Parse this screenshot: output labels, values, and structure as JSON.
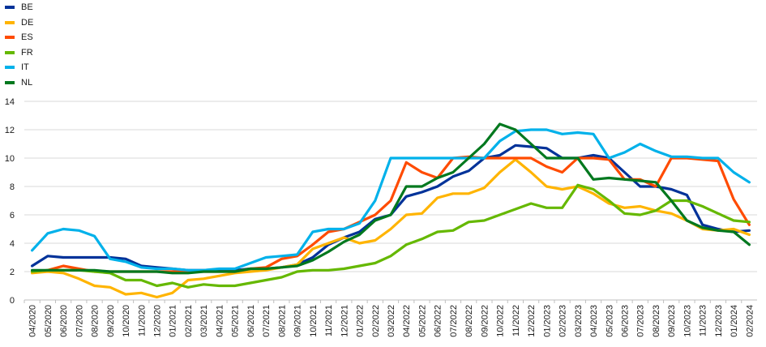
{
  "chart_data": {
    "type": "line",
    "title": "",
    "xlabel": "",
    "ylabel": "",
    "ylim": [
      0,
      14
    ],
    "yticks": [
      0,
      2,
      4,
      6,
      8,
      10,
      12,
      14
    ],
    "grid": true,
    "legend_position": "top-left",
    "categories": [
      "04/2020",
      "05/2020",
      "06/2020",
      "07/2020",
      "08/2020",
      "09/2020",
      "10/2020",
      "11/2020",
      "12/2020",
      "01/2021",
      "02/2021",
      "03/2021",
      "04/2021",
      "05/2021",
      "06/2021",
      "07/2021",
      "08/2021",
      "09/2021",
      "10/2021",
      "11/2021",
      "12/2021",
      "01/2022",
      "02/2022",
      "03/2022",
      "04/2022",
      "05/2022",
      "06/2022",
      "07/2022",
      "08/2022",
      "09/2022",
      "10/2022",
      "11/2022",
      "12/2022",
      "01/2023",
      "02/2023",
      "03/2023",
      "04/2023",
      "05/2023",
      "06/2023",
      "07/2023",
      "08/2023",
      "09/2023",
      "10/2023",
      "11/2023",
      "12/2023",
      "01/2024",
      "02/2024"
    ],
    "series": [
      {
        "name": "BE",
        "color": "#003299",
        "values": [
          2.4,
          3.1,
          3.0,
          3.0,
          3.0,
          3.0,
          2.9,
          2.4,
          2.3,
          2.2,
          2.1,
          2.1,
          2.1,
          2.1,
          2.2,
          2.2,
          2.3,
          2.5,
          3.0,
          3.9,
          4.4,
          4.8,
          5.7,
          6.0,
          7.3,
          7.6,
          8.0,
          8.7,
          9.1,
          10.0,
          10.2,
          10.9,
          10.8,
          10.7,
          10.0,
          10.0,
          10.2,
          10.0,
          9.0,
          8.0,
          8.0,
          7.8,
          7.4,
          5.3,
          5.0,
          4.8,
          4.9
        ]
      },
      {
        "name": "DE",
        "color": "#FFB400",
        "values": [
          1.9,
          2.0,
          1.9,
          1.5,
          1.0,
          0.9,
          0.4,
          0.5,
          0.2,
          0.5,
          1.4,
          1.5,
          1.7,
          1.9,
          2.0,
          2.1,
          2.3,
          2.5,
          3.6,
          4.0,
          4.4,
          4.0,
          4.2,
          5.0,
          6.0,
          6.1,
          7.2,
          7.5,
          7.5,
          7.9,
          9.0,
          9.9,
          9.0,
          8.0,
          7.8,
          8.0,
          7.5,
          6.8,
          6.5,
          6.6,
          6.3,
          6.1,
          5.6,
          5.0,
          4.9,
          5.0,
          4.6
        ]
      },
      {
        "name": "ES",
        "color": "#FF4B00",
        "values": [
          2.0,
          2.1,
          2.4,
          2.2,
          2.0,
          2.0,
          2.0,
          2.0,
          2.0,
          2.0,
          2.0,
          2.0,
          2.0,
          2.0,
          2.2,
          2.3,
          2.9,
          3.1,
          3.9,
          4.8,
          5.0,
          5.5,
          6.0,
          7.0,
          9.7,
          9.0,
          8.6,
          10.0,
          10.1,
          10.0,
          10.0,
          10.0,
          10.0,
          9.4,
          9.0,
          10.0,
          10.0,
          9.9,
          8.5,
          8.5,
          8.0,
          10.0,
          10.0,
          9.9,
          9.8,
          7.1,
          5.3
        ]
      },
      {
        "name": "FR",
        "color": "#65B800",
        "values": [
          2.0,
          2.1,
          2.1,
          2.1,
          2.0,
          1.9,
          1.4,
          1.4,
          1.0,
          1.2,
          0.9,
          1.1,
          1.0,
          1.0,
          1.2,
          1.4,
          1.6,
          2.0,
          2.1,
          2.1,
          2.2,
          2.4,
          2.6,
          3.1,
          3.9,
          4.3,
          4.8,
          4.9,
          5.5,
          5.6,
          6.0,
          6.4,
          6.8,
          6.5,
          6.5,
          8.1,
          7.8,
          7.0,
          6.1,
          6.0,
          6.3,
          7.0,
          7.0,
          6.6,
          6.1,
          5.6,
          5.5
        ]
      },
      {
        "name": "IT",
        "color": "#00B1EA",
        "values": [
          3.5,
          4.7,
          5.0,
          4.9,
          4.5,
          2.9,
          2.7,
          2.3,
          2.2,
          2.2,
          2.1,
          2.1,
          2.2,
          2.2,
          2.6,
          3.0,
          3.1,
          3.2,
          4.8,
          5.0,
          5.0,
          5.4,
          7.0,
          10.0,
          10.0,
          10.0,
          10.0,
          10.0,
          10.0,
          10.0,
          11.2,
          11.9,
          12.0,
          12.0,
          11.7,
          11.8,
          11.7,
          10.0,
          10.4,
          11.0,
          10.5,
          10.1,
          10.1,
          10.0,
          10.0,
          9.0,
          8.3
        ]
      },
      {
        "name": "NL",
        "color": "#00781E",
        "values": [
          2.1,
          2.1,
          2.1,
          2.1,
          2.1,
          2.0,
          2.0,
          2.0,
          2.0,
          1.9,
          1.9,
          2.0,
          2.0,
          2.0,
          2.2,
          2.2,
          2.3,
          2.4,
          2.8,
          3.4,
          4.1,
          4.6,
          5.6,
          6.0,
          8.0,
          8.0,
          8.6,
          9.0,
          10.0,
          11.0,
          12.4,
          12.0,
          11.0,
          10.0,
          10.0,
          10.0,
          8.5,
          8.6,
          8.5,
          8.4,
          8.3,
          7.0,
          5.6,
          5.1,
          4.9,
          4.8,
          3.9
        ]
      }
    ]
  }
}
